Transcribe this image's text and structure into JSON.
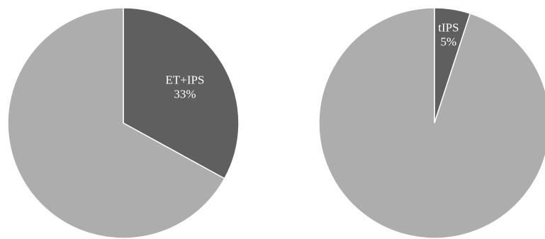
{
  "chart_data": [
    {
      "type": "pie",
      "slices": [
        {
          "label": "ET+IPS",
          "value_label": "33%",
          "value": 33,
          "color": "#5f5f5f",
          "show_label": true
        },
        {
          "label": "",
          "value_label": "",
          "value": 67,
          "color": "#adadad",
          "show_label": false
        }
      ],
      "title": "",
      "legend": "none"
    },
    {
      "type": "pie",
      "slices": [
        {
          "label": "tIPS",
          "value_label": "5%",
          "value": 5,
          "color": "#5f5f5f",
          "show_label": true
        },
        {
          "label": "",
          "value_label": "",
          "value": 95,
          "color": "#adadad",
          "show_label": false
        }
      ],
      "title": "",
      "legend": "none"
    }
  ]
}
